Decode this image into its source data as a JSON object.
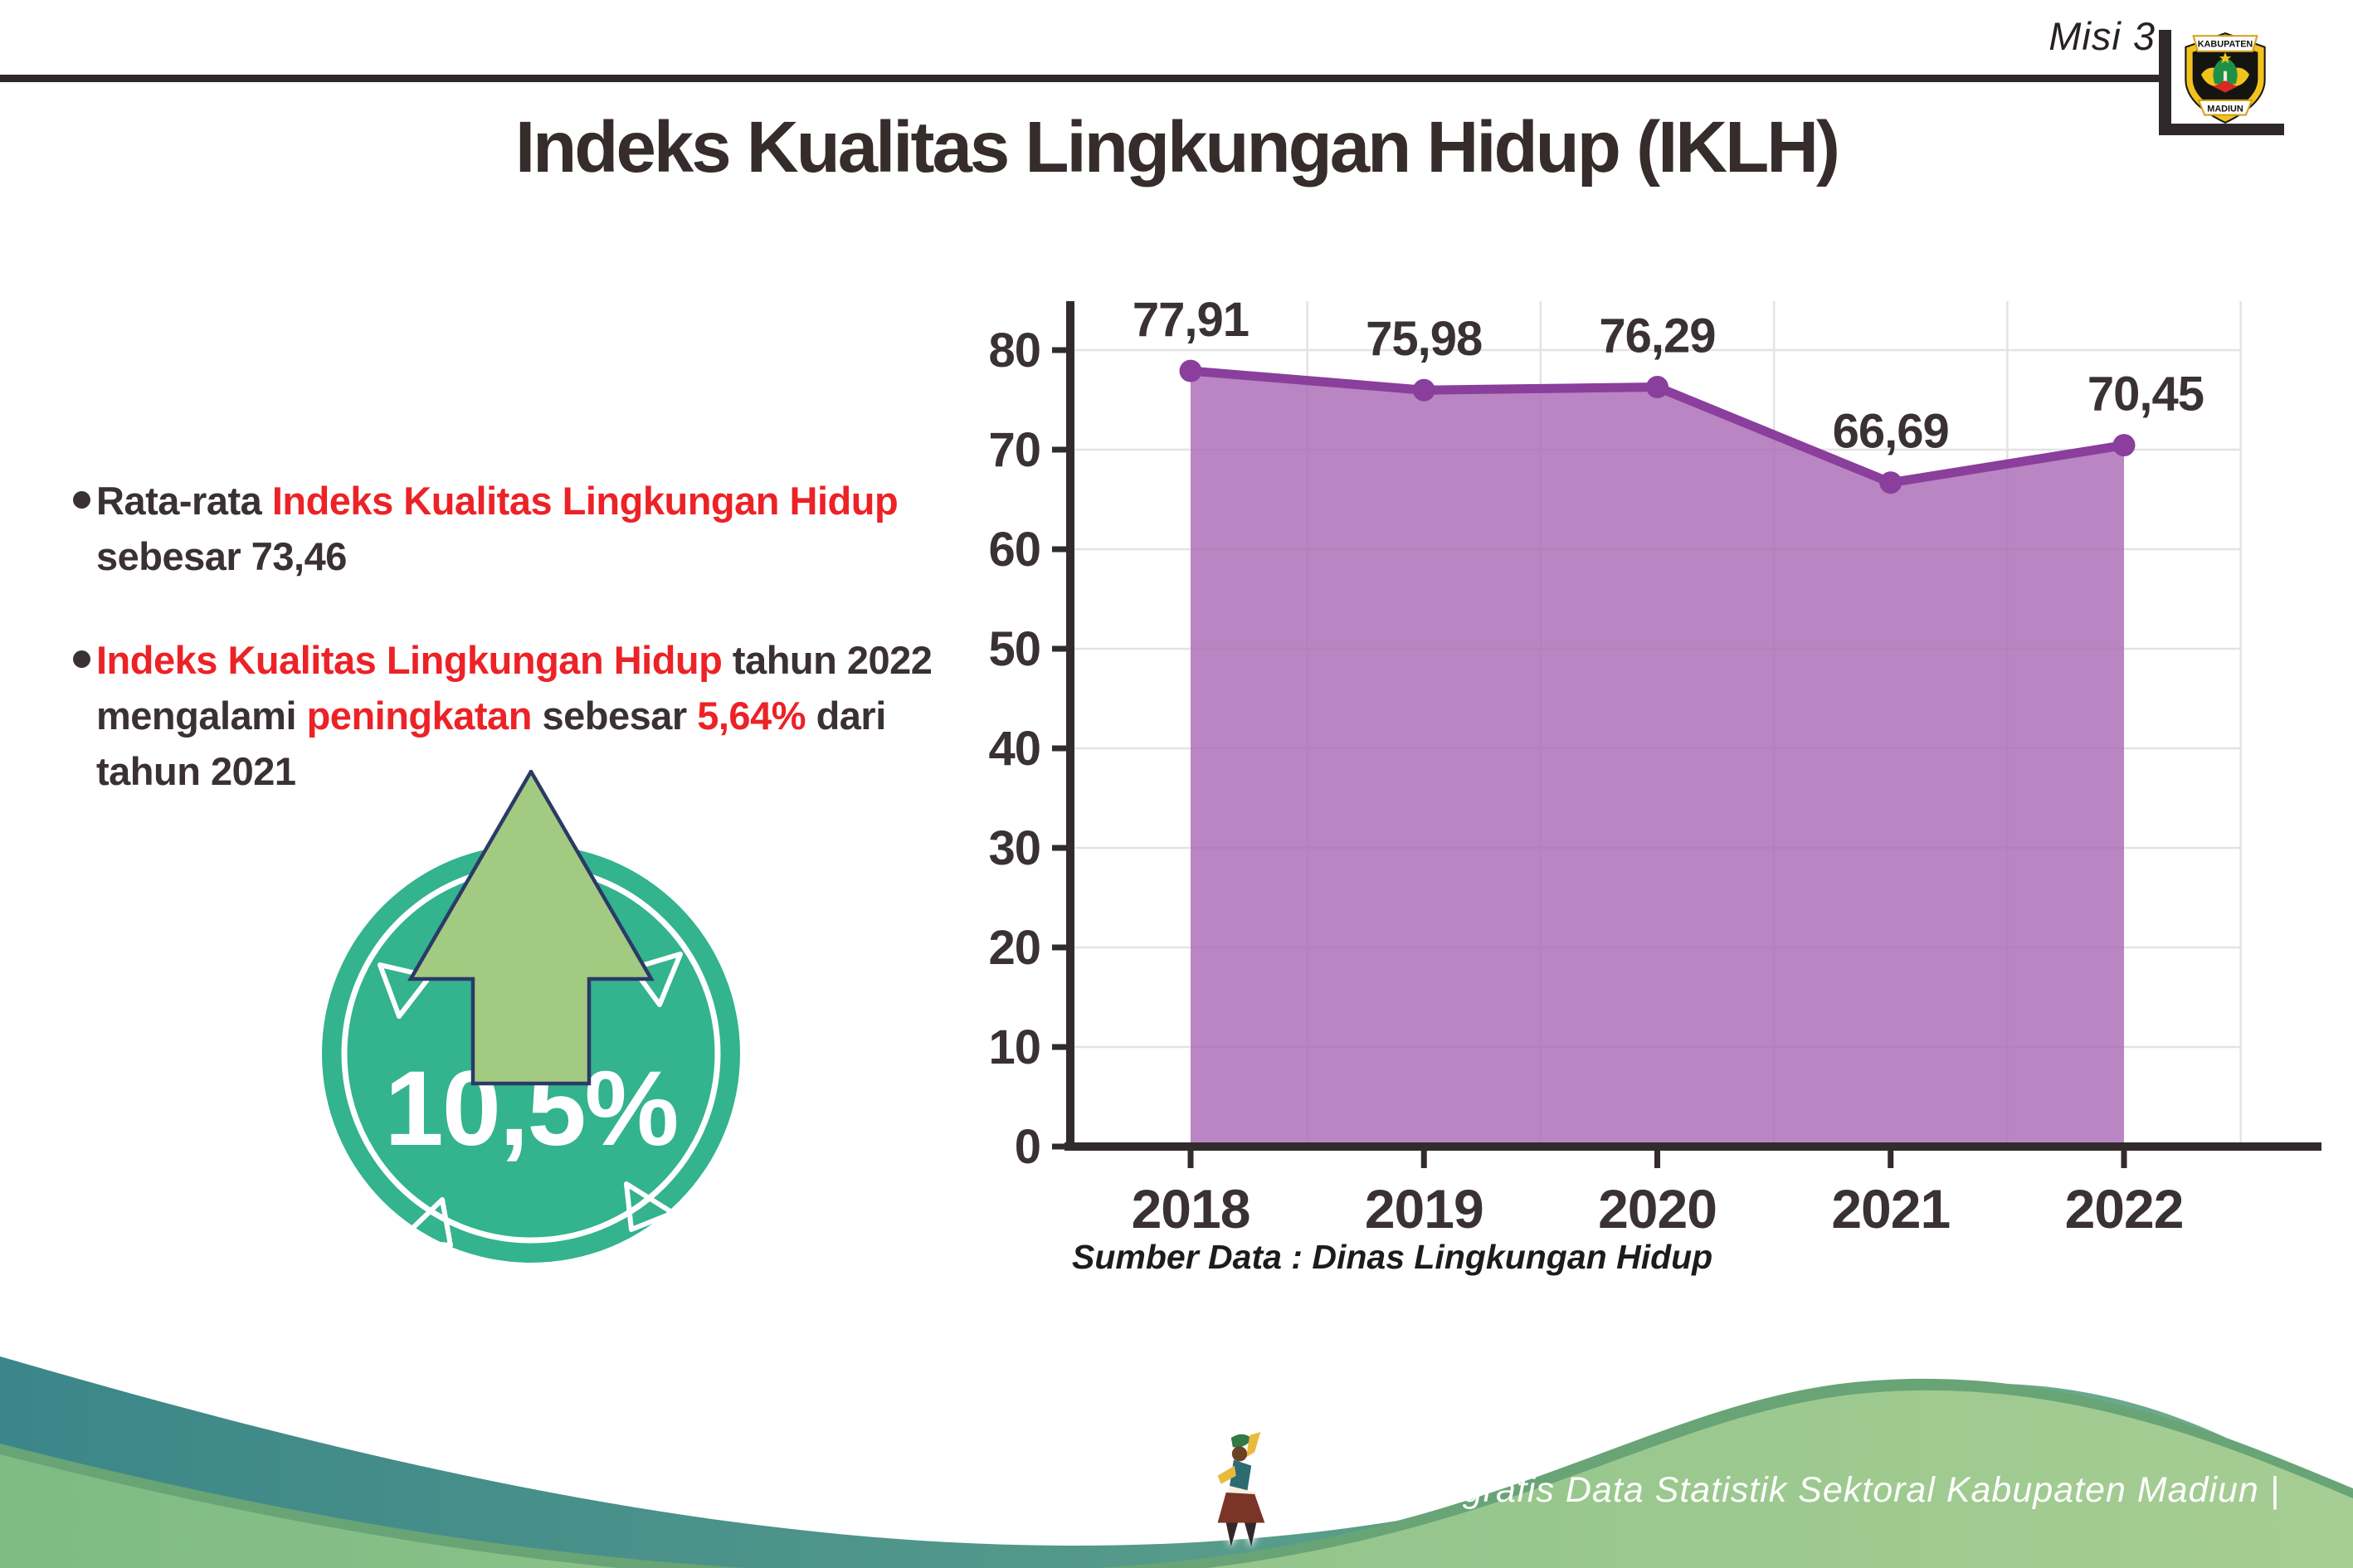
{
  "header": {
    "mission": "Misi 3",
    "title": "Indeks Kualitas Lingkungan Hidup (IKLH)",
    "logo_top": "KABUPATEN",
    "logo_bottom": "MADIUN"
  },
  "colors": {
    "dark": "#3a3132",
    "red": "#ec2227",
    "axis": "#322b2c",
    "grid": "#e3e3e3",
    "label": "#3a3132"
  },
  "bullets": [
    {
      "lines": [
        [
          {
            "t": "Rata-rata ",
            "c": "dark"
          },
          {
            "t": "Indeks Kualitas Lingkungan Hidup",
            "c": "red"
          }
        ],
        [
          {
            "t": "sebesar 73,46",
            "c": "dark"
          }
        ]
      ]
    },
    {
      "lines": [
        [
          {
            "t": "Indeks Kualitas Lingkungan Hidup",
            "c": "red"
          },
          {
            "t": " tahun 2022",
            "c": "dark"
          }
        ],
        [
          {
            "t": "mengalami ",
            "c": "dark"
          },
          {
            "t": "peningkatan",
            "c": "red"
          },
          {
            "t": " sebesar ",
            "c": "dark"
          },
          {
            "t": "5,64%",
            "c": "red"
          },
          {
            "t": " dari",
            "c": "dark"
          }
        ],
        [
          {
            "t": "tahun 2021",
            "c": "dark"
          }
        ]
      ]
    }
  ],
  "badge": {
    "value": "10,5%",
    "circle_color": "#33b38e",
    "arrow_color": "#a3ca81",
    "arrow_outline": "#2b3a66"
  },
  "chart_data": {
    "type": "area",
    "title": "",
    "xlabel": "",
    "ylabel": "",
    "categories": [
      "2018",
      "2019",
      "2020",
      "2021",
      "2022"
    ],
    "values": [
      77.91,
      75.98,
      76.29,
      66.69,
      70.45
    ],
    "point_labels": [
      "77,91",
      "75,98",
      "76,29",
      "66,69",
      "70,45"
    ],
    "ylim": [
      0,
      85
    ],
    "yticks": [
      0,
      10,
      20,
      30,
      40,
      50,
      60,
      70,
      80
    ],
    "grid": true,
    "legend": false,
    "area_color": "#a766b3",
    "area_opacity": 0.8,
    "line_color": "#8a3f9c",
    "source": "Sumber Data : Dinas Lingkungan Hidup"
  },
  "footer": {
    "credit": "Media Infografis Data Statistik Sektoral Kabupaten Madiun |"
  }
}
